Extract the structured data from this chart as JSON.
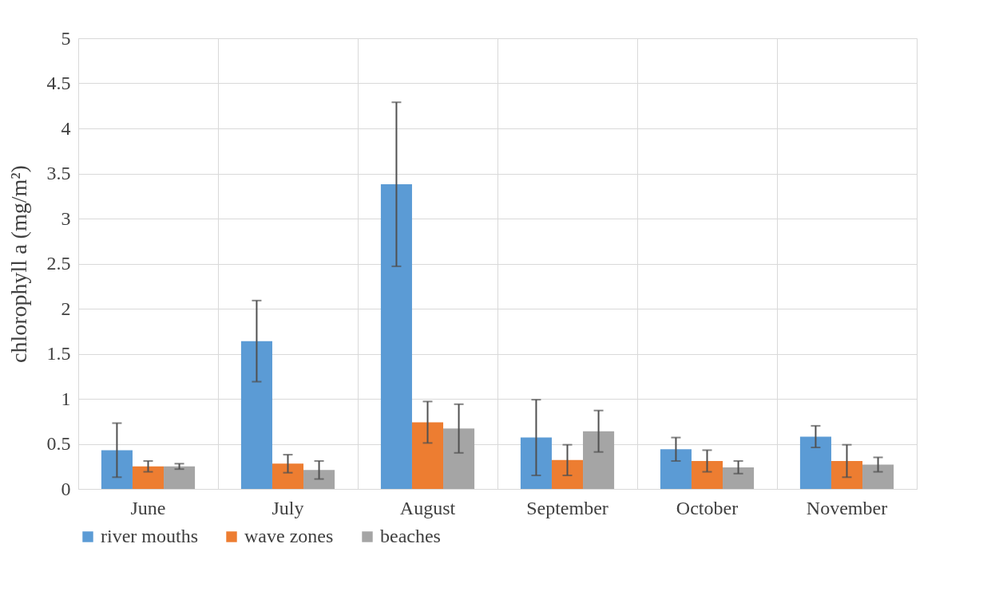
{
  "chart_data": {
    "type": "bar",
    "ylabel": "chlorophyll a (mg/m²)",
    "categories": [
      "June",
      "July",
      "August",
      "September",
      "October",
      "November"
    ],
    "series": [
      {
        "name": "river mouths",
        "color": "#5b9bd5",
        "values": [
          0.43,
          1.64,
          3.38,
          0.57,
          0.44,
          0.58
        ],
        "errors": [
          0.3,
          0.45,
          0.91,
          0.42,
          0.13,
          0.12
        ]
      },
      {
        "name": "wave zones",
        "color": "#ed7d31",
        "values": [
          0.25,
          0.28,
          0.74,
          0.32,
          0.31,
          0.31
        ],
        "errors": [
          0.06,
          0.1,
          0.23,
          0.17,
          0.12,
          0.18
        ]
      },
      {
        "name": "beaches",
        "color": "#a5a5a5",
        "values": [
          0.25,
          0.21,
          0.67,
          0.64,
          0.24,
          0.27
        ],
        "errors": [
          0.03,
          0.1,
          0.27,
          0.23,
          0.07,
          0.08
        ]
      }
    ],
    "ylim": [
      0,
      5
    ],
    "yticks": [
      0,
      0.5,
      1,
      1.5,
      2,
      2.5,
      3,
      3.5,
      4,
      4.5,
      5
    ],
    "grid": true,
    "legend": "bottom"
  }
}
